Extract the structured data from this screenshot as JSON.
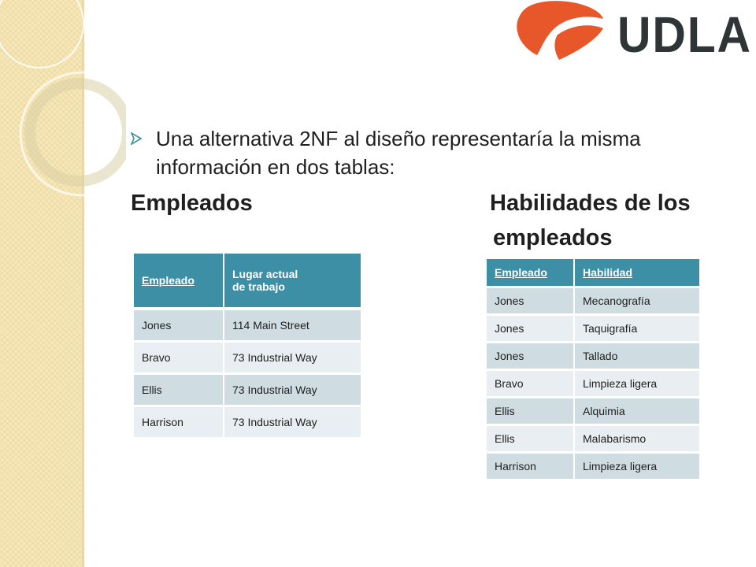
{
  "logo": {
    "text": "UDLA"
  },
  "bullet": {
    "text": "Una alternativa 2NF al diseño representaría la misma información en dos tablas:"
  },
  "headings": {
    "left": "Empleados",
    "right_line1": "Habilidades de los",
    "right_line2": "empleados"
  },
  "table_empleados": {
    "headers": [
      "Empleado",
      "Lugar actual de trabajo"
    ],
    "header_line1": "Lugar actual",
    "header_line2": "de trabajo",
    "rows": [
      [
        "Jones",
        "114 Main Street"
      ],
      [
        "Bravo",
        "73 Industrial Way"
      ],
      [
        "Ellis",
        "73 Industrial Way"
      ],
      [
        "Harrison",
        "73 Industrial Way"
      ]
    ]
  },
  "table_habilidades": {
    "headers": [
      "Empleado",
      "Habilidad"
    ],
    "rows": [
      [
        "Jones",
        "Mecanografía"
      ],
      [
        "Jones",
        "Taquigrafía"
      ],
      [
        "Jones",
        "Tallado"
      ],
      [
        "Bravo",
        "Limpieza ligera"
      ],
      [
        "Ellis",
        "Alquimia"
      ],
      [
        "Ellis",
        "Malabarismo"
      ],
      [
        "Harrison",
        "Limpieza ligera"
      ]
    ]
  },
  "colors": {
    "header_bg": "#3d8fa6",
    "row_odd": "#cfdde2",
    "row_even": "#e8eef1",
    "strip": "#f6e7b8",
    "logo_orange": "#e8572a",
    "logo_text": "#2f3437"
  }
}
